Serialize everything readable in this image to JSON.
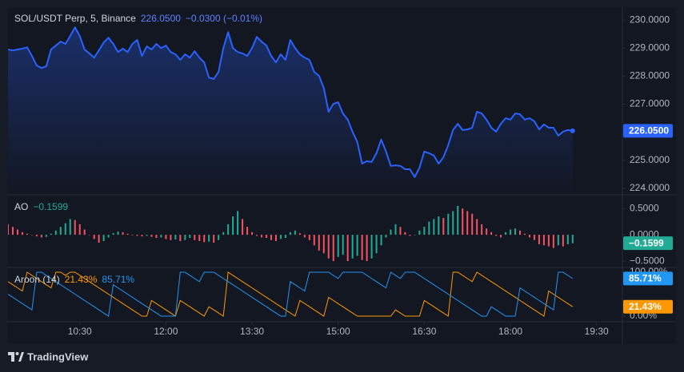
{
  "chart_data": [
    {
      "type": "area",
      "title": "SOL/USDT Perp, 5, Binance",
      "last_label": "226.0500",
      "change_label": "−0.0300 (−0.01%)",
      "color": "#2962ff",
      "x": [
        555,
        560,
        565,
        570,
        575,
        580,
        585,
        590,
        595,
        600,
        605,
        610,
        615,
        620,
        625,
        630,
        635,
        640,
        645,
        650,
        655,
        660,
        665,
        670,
        675,
        680,
        685,
        690,
        695,
        700,
        705,
        710,
        715,
        720,
        725,
        730,
        735,
        740,
        745,
        750,
        755,
        760,
        765,
        770,
        775,
        780,
        785,
        790,
        795,
        800,
        805,
        810,
        815,
        820,
        825,
        830,
        835,
        840,
        845,
        850,
        855,
        860,
        865,
        870,
        875,
        880,
        885,
        890,
        895,
        900,
        905,
        910,
        915,
        920,
        925,
        930,
        935,
        940,
        945,
        950,
        955,
        960,
        965,
        970,
        975,
        980,
        985,
        990,
        995,
        1000,
        1005,
        1010,
        1015,
        1020,
        1025,
        1030,
        1035,
        1040,
        1045,
        1050,
        1055,
        1060,
        1065,
        1070,
        1075,
        1080,
        1085,
        1090,
        1095,
        1100,
        1105,
        1110,
        1115,
        1120,
        1125,
        1130,
        1135,
        1140,
        1145
      ],
      "values": [
        228.95,
        228.92,
        228.95,
        228.98,
        229.03,
        228.72,
        228.38,
        228.29,
        228.35,
        228.95,
        229.09,
        229.23,
        229.15,
        229.43,
        229.74,
        229.43,
        228.95,
        228.81,
        228.66,
        228.92,
        229.2,
        229.37,
        229.15,
        228.86,
        228.98,
        228.86,
        229.15,
        229.29,
        228.72,
        229.06,
        228.95,
        229.15,
        229.0,
        229.09,
        228.86,
        228.78,
        228.58,
        228.78,
        228.66,
        228.89,
        228.66,
        228.49,
        227.95,
        227.9,
        228.15,
        229.0,
        229.57,
        229.0,
        228.86,
        228.81,
        228.72,
        229.0,
        229.4,
        229.23,
        229.09,
        228.72,
        228.49,
        228.78,
        228.58,
        229.29,
        229.0,
        228.78,
        228.66,
        228.58,
        228.15,
        228.01,
        227.58,
        226.73,
        227.01,
        227.07,
        226.67,
        226.45,
        226.02,
        225.65,
        224.88,
        224.97,
        224.94,
        225.25,
        225.74,
        225.31,
        224.8,
        224.82,
        224.8,
        224.68,
        224.68,
        224.4,
        224.74,
        225.31,
        225.25,
        225.17,
        224.88,
        225.11,
        225.54,
        226.08,
        226.3,
        226.08,
        226.1,
        226.16,
        226.73,
        226.67,
        226.45,
        226.16,
        226.02,
        226.3,
        226.5,
        226.45,
        226.67,
        226.64,
        226.45,
        226.5,
        226.39,
        226.1,
        226.28,
        226.16,
        226.16,
        225.88,
        226.02,
        226.08,
        226.05
      ],
      "xlim": [
        555,
        1197
      ],
      "xticks": [
        {
          "value": 630,
          "label": "10:30"
        },
        {
          "value": 720,
          "label": "12:00"
        },
        {
          "value": 810,
          "label": "13:30"
        },
        {
          "value": 900,
          "label": "15:00"
        },
        {
          "value": 990,
          "label": "16:30"
        },
        {
          "value": 1080,
          "label": "18:00"
        },
        {
          "value": 1170,
          "label": "19:30"
        }
      ],
      "ylim": [
        223.77,
        230.43
      ],
      "yticks": [
        {
          "value": 230,
          "label": "230.0000"
        },
        {
          "value": 229,
          "label": "229.0000"
        },
        {
          "value": 228,
          "label": "228.0000"
        },
        {
          "value": 227,
          "label": "227.0000"
        },
        {
          "value": 225,
          "label": "225.0000"
        },
        {
          "value": 224,
          "label": "224.0000"
        }
      ],
      "grid": false
    },
    {
      "type": "histogram",
      "title": "AO",
      "last_label": "−0.1599",
      "up_color": "#22ab94",
      "down_color": "#f7525f",
      "values": [
        0.2,
        0.15,
        0.1,
        0.05,
        0.02,
        0.0,
        -0.03,
        -0.05,
        -0.04,
        0.02,
        0.08,
        0.15,
        0.22,
        0.3,
        0.28,
        0.2,
        0.1,
        0.0,
        -0.08,
        -0.15,
        -0.12,
        -0.05,
        0.03,
        0.06,
        0.05,
        0.02,
        -0.01,
        -0.02,
        -0.03,
        -0.02,
        -0.04,
        -0.06,
        -0.05,
        -0.08,
        -0.1,
        -0.09,
        -0.12,
        -0.1,
        -0.06,
        -0.1,
        -0.12,
        -0.14,
        -0.13,
        -0.15,
        -0.1,
        0.05,
        0.2,
        0.35,
        0.45,
        0.3,
        0.15,
        0.05,
        -0.02,
        -0.05,
        -0.06,
        -0.1,
        -0.12,
        -0.08,
        -0.06,
        0.05,
        0.08,
        0.03,
        -0.05,
        -0.1,
        -0.2,
        -0.3,
        -0.35,
        -0.45,
        -0.5,
        -0.42,
        -0.38,
        -0.5,
        -0.45,
        -0.4,
        -0.48,
        -0.5,
        -0.45,
        -0.35,
        -0.2,
        -0.05,
        0.1,
        0.2,
        0.15,
        0.05,
        -0.02,
        0.0,
        0.08,
        0.15,
        0.25,
        0.3,
        0.35,
        0.32,
        0.4,
        0.45,
        0.55,
        0.5,
        0.45,
        0.4,
        0.3,
        0.2,
        0.12,
        0.05,
        -0.02,
        -0.05,
        0.05,
        0.1,
        0.12,
        0.08,
        0.02,
        -0.05,
        -0.1,
        -0.18,
        -0.2,
        -0.22,
        -0.25,
        -0.2,
        -0.22,
        -0.18,
        -0.1599
      ],
      "ylim": [
        -0.62,
        0.76
      ],
      "yticks": [
        {
          "value": 0.5,
          "label": "0.5000"
        },
        {
          "value": 0,
          "label": "0.0000"
        },
        {
          "value": -0.5,
          "label": "−0.5000"
        }
      ]
    },
    {
      "type": "line",
      "title": "Aroon (14)",
      "series": [
        {
          "color": "#ff9800",
          "last_label": "21.43%",
          "values": [
            78.57,
            71.43,
            64.29,
            57.14,
            100,
            92.86,
            85.71,
            78.57,
            71.43,
            64.29,
            100,
            100,
            92.86,
            100,
            100,
            92.86,
            85.71,
            78.57,
            71.43,
            64.29,
            57.14,
            50,
            42.86,
            35.71,
            28.57,
            21.43,
            14.29,
            7.14,
            0,
            0,
            35.71,
            28.57,
            21.43,
            14.29,
            7.14,
            0,
            35.71,
            28.57,
            21.43,
            14.29,
            7.14,
            0,
            21.43,
            14.29,
            7.14,
            0,
            100,
            92.86,
            85.71,
            78.57,
            71.43,
            64.29,
            57.14,
            50,
            42.86,
            35.71,
            28.57,
            21.43,
            14.29,
            7.14,
            0,
            35.71,
            28.57,
            21.43,
            14.29,
            7.14,
            0,
            42.86,
            35.71,
            28.57,
            21.43,
            14.29,
            7.14,
            0,
            0,
            0,
            0,
            0,
            0,
            0,
            0,
            14.29,
            7.14,
            0,
            0,
            0,
            0,
            35.71,
            28.57,
            21.43,
            14.29,
            7.14,
            0,
            100,
            100,
            92.86,
            85.71,
            78.57,
            100,
            92.86,
            85.71,
            78.57,
            71.43,
            64.29,
            57.14,
            50,
            42.86,
            35.71,
            28.57,
            21.43,
            14.29,
            7.14,
            0,
            57.14,
            50,
            42.86,
            35.71,
            28.57,
            21.43
          ]
        },
        {
          "color": "#2196f3",
          "last_label": "85.71%",
          "values": [
            50,
            42.86,
            35.71,
            28.57,
            21.43,
            14.29,
            100,
            100,
            92.86,
            85.71,
            78.57,
            71.43,
            64.29,
            57.14,
            50,
            42.86,
            35.71,
            28.57,
            21.43,
            14.29,
            7.14,
            0,
            71.43,
            64.29,
            57.14,
            50,
            42.86,
            35.71,
            28.57,
            21.43,
            14.29,
            7.14,
            0,
            0,
            0,
            0,
            100,
            100,
            92.86,
            85.71,
            78.57,
            100,
            100,
            100,
            92.86,
            85.71,
            78.57,
            71.43,
            64.29,
            57.14,
            50,
            42.86,
            35.71,
            28.57,
            21.43,
            14.29,
            7.14,
            0,
            0,
            78.57,
            71.43,
            64.29,
            57.14,
            100,
            100,
            100,
            100,
            100,
            92.86,
            85.71,
            100,
            100,
            100,
            100,
            100,
            92.86,
            85.71,
            78.57,
            71.43,
            64.29,
            100,
            92.86,
            85.71,
            100,
            100,
            100,
            92.86,
            85.71,
            78.57,
            71.43,
            64.29,
            57.14,
            50,
            42.86,
            35.71,
            28.57,
            21.43,
            14.29,
            7.14,
            0,
            0,
            21.43,
            14.29,
            7.14,
            0,
            0,
            0,
            64.29,
            57.14,
            50,
            42.86,
            35.71,
            28.57,
            21.43,
            14.29,
            100,
            100,
            92.86,
            85.71
          ]
        }
      ],
      "ylim": [
        -12.7,
        110.9
      ],
      "yticks": [
        {
          "value": 100,
          "label": "100.00%"
        },
        {
          "value": 0,
          "label": "0.00%"
        }
      ]
    }
  ],
  "footer": {
    "brand": "TradingView"
  }
}
